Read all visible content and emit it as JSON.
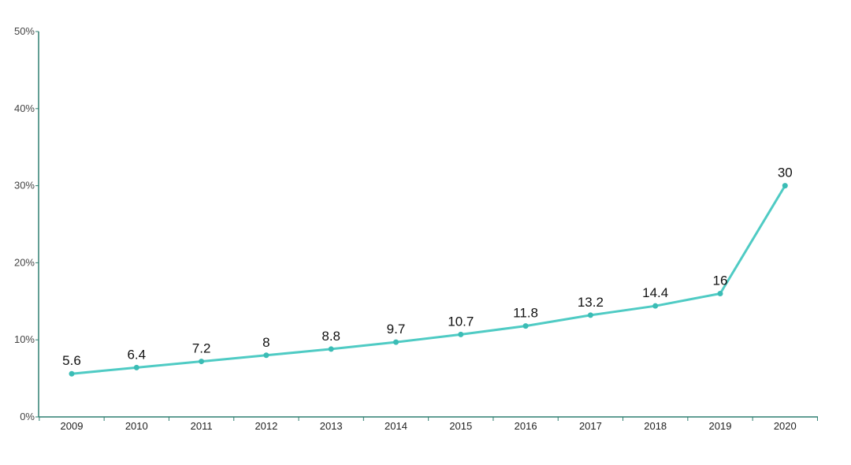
{
  "chart_data": {
    "type": "line",
    "title": "",
    "xlabel": "",
    "ylabel": "",
    "x": [
      "2009",
      "2010",
      "2011",
      "2012",
      "2013",
      "2014",
      "2015",
      "2016",
      "2017",
      "2018",
      "2019",
      "2020"
    ],
    "series": [
      {
        "values": [
          5.6,
          6.4,
          7.2,
          8,
          8.8,
          9.7,
          10.7,
          11.8,
          13.2,
          14.4,
          16,
          30
        ],
        "data_labels": [
          "5.6",
          "6.4",
          "7.2",
          "8",
          "8.8",
          "9.7",
          "10.7",
          "11.8",
          "13.2",
          "14.4",
          "16",
          "30"
        ]
      }
    ],
    "ylim": [
      0,
      50
    ],
    "y_ticks": [
      0,
      10,
      20,
      30,
      40,
      50
    ],
    "y_tick_labels": [
      "0%",
      "10%",
      "20%",
      "30%",
      "40%",
      "50%"
    ],
    "grid": false,
    "legend": "none",
    "colors": {
      "line": "#4fcbc4",
      "point": "#3bbcb5",
      "axis": "#2f7f70"
    }
  }
}
